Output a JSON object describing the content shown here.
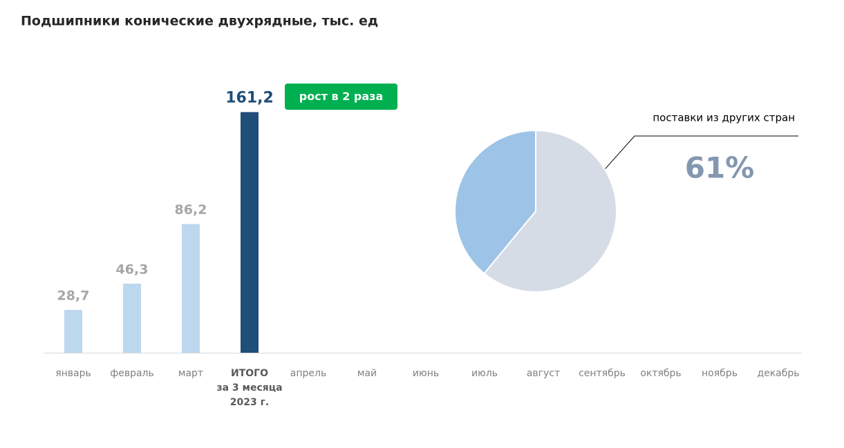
{
  "chart_data": [
    {
      "type": "bar",
      "title": "Подшипники конические двухрядные, тыс. ед",
      "categories": [
        "январь",
        "февраль",
        "март",
        "ИТОГО\nза 3 месяца\n2023 г.",
        "апрель",
        "май",
        "июнь",
        "июль",
        "август",
        "сентябрь",
        "октябрь",
        "ноябрь",
        "декабрь"
      ],
      "values": [
        28.7,
        46.3,
        86.2,
        161.2,
        null,
        null,
        null,
        null,
        null,
        null,
        null,
        null,
        null
      ],
      "value_labels": [
        "28,7",
        "46,3",
        "86,2",
        "161,2",
        null,
        null,
        null,
        null,
        null,
        null,
        null,
        null,
        null
      ],
      "colors": [
        "#bdd7ee",
        "#bdd7ee",
        "#bdd7ee",
        "#1f4e79",
        null,
        null,
        null,
        null,
        null,
        null,
        null,
        null,
        null
      ],
      "label_colors": [
        "#a6a6a6",
        "#a6a6a6",
        "#a6a6a6",
        "#1f4e79",
        null,
        null,
        null,
        null,
        null,
        null,
        null,
        null,
        null
      ],
      "ylim": [
        0,
        160
      ],
      "annotation": "рост в 2 раза"
    },
    {
      "type": "pie",
      "labels": [
        "поставки из других стран",
        null
      ],
      "values": [
        61,
        39
      ],
      "value_labels": [
        "61%",
        null
      ],
      "colors": [
        "#d6dce5",
        "#9dc3e6"
      ]
    }
  ]
}
